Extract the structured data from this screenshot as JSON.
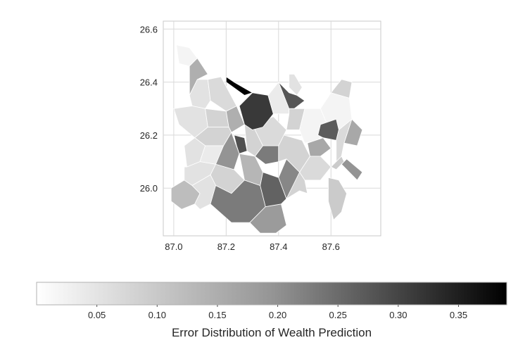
{
  "chart_data": {
    "type": "heatmap",
    "subtype": "choropleth-polygons",
    "colormap": "Greys",
    "xlabel": "",
    "ylabel": "",
    "xlim": [
      86.96,
      87.79
    ],
    "ylim": [
      25.82,
      26.63
    ],
    "xticks": [
      87.0,
      87.2,
      87.4,
      87.6
    ],
    "xtick_labels": [
      "87.0",
      "87.2",
      "87.4",
      "87.6"
    ],
    "yticks": [
      26.0,
      26.2,
      26.4,
      26.6
    ],
    "ytick_labels": [
      "26.0",
      "26.2",
      "26.4",
      "26.6"
    ],
    "grid": true,
    "colorbar": {
      "orientation": "horizontal",
      "location": "bottom",
      "range": [
        0.0,
        0.39
      ],
      "ticks": [
        0.05,
        0.1,
        0.15,
        0.2,
        0.25,
        0.3,
        0.35
      ],
      "tick_labels": [
        "0.05",
        "0.10",
        "0.15",
        "0.20",
        "0.25",
        "0.30",
        "0.35"
      ],
      "label": "Error Distribution of Wealth Prediction"
    },
    "regions": [
      {
        "value": 0.01,
        "pts": [
          [
            87.01,
            26.54
          ],
          [
            87.06,
            26.53
          ],
          [
            87.09,
            26.49
          ],
          [
            87.06,
            26.46
          ],
          [
            87.02,
            26.47
          ]
        ]
      },
      {
        "value": 0.1,
        "pts": [
          [
            87.06,
            26.46
          ],
          [
            87.09,
            26.49
          ],
          [
            87.13,
            26.43
          ],
          [
            87.09,
            26.41
          ],
          [
            87.06,
            26.35
          ]
        ]
      },
      {
        "value": 0.03,
        "pts": [
          [
            87.06,
            26.35
          ],
          [
            87.09,
            26.41
          ],
          [
            87.13,
            26.41
          ],
          [
            87.14,
            26.33
          ],
          [
            87.12,
            26.3
          ],
          [
            87.07,
            26.31
          ]
        ]
      },
      {
        "value": 0.03,
        "pts": [
          [
            87.0,
            26.3
          ],
          [
            87.07,
            26.31
          ],
          [
            87.12,
            26.3
          ],
          [
            87.13,
            26.23
          ],
          [
            87.08,
            26.19
          ],
          [
            87.02,
            26.24
          ]
        ]
      },
      {
        "value": 0.05,
        "pts": [
          [
            87.12,
            26.3
          ],
          [
            87.2,
            26.29
          ],
          [
            87.21,
            26.23
          ],
          [
            87.13,
            26.23
          ]
        ]
      },
      {
        "value": 0.1,
        "pts": [
          [
            87.2,
            26.29
          ],
          [
            87.24,
            26.31
          ],
          [
            87.27,
            26.24
          ],
          [
            87.22,
            26.21
          ],
          [
            87.21,
            26.23
          ]
        ]
      },
      {
        "value": 0.05,
        "pts": [
          [
            87.08,
            26.19
          ],
          [
            87.13,
            26.23
          ],
          [
            87.21,
            26.23
          ],
          [
            87.22,
            26.21
          ],
          [
            87.19,
            26.16
          ],
          [
            87.12,
            26.16
          ]
        ]
      },
      {
        "value": 0.03,
        "pts": [
          [
            87.04,
            26.16
          ],
          [
            87.08,
            26.19
          ],
          [
            87.12,
            26.16
          ],
          [
            87.1,
            26.1
          ],
          [
            87.05,
            26.08
          ]
        ]
      },
      {
        "value": 0.02,
        "pts": [
          [
            87.12,
            26.16
          ],
          [
            87.19,
            26.16
          ],
          [
            87.16,
            26.09
          ],
          [
            87.1,
            26.1
          ]
        ]
      },
      {
        "value": 0.03,
        "pts": [
          [
            87.04,
            26.08
          ],
          [
            87.05,
            26.08
          ],
          [
            87.1,
            26.1
          ],
          [
            87.16,
            26.09
          ],
          [
            87.14,
            26.05
          ],
          [
            87.07,
            26.01
          ],
          [
            87.04,
            26.03
          ]
        ]
      },
      {
        "value": 0.05,
        "pts": [
          [
            87.14,
            26.05
          ],
          [
            87.16,
            26.09
          ],
          [
            87.23,
            26.07
          ],
          [
            87.27,
            26.03
          ],
          [
            87.22,
            25.98
          ],
          [
            87.16,
            26.01
          ]
        ]
      },
      {
        "value": 0.08,
        "pts": [
          [
            86.99,
            26.0
          ],
          [
            87.04,
            26.03
          ],
          [
            87.07,
            26.01
          ],
          [
            87.1,
            25.98
          ],
          [
            87.08,
            25.94
          ],
          [
            87.03,
            25.92
          ],
          [
            86.99,
            25.95
          ]
        ]
      },
      {
        "value": 0.03,
        "pts": [
          [
            87.07,
            26.01
          ],
          [
            87.14,
            26.05
          ],
          [
            87.16,
            26.01
          ],
          [
            87.14,
            25.94
          ],
          [
            87.1,
            25.92
          ],
          [
            87.08,
            25.94
          ],
          [
            87.1,
            25.98
          ]
        ]
      },
      {
        "value": 0.18,
        "pts": [
          [
            87.16,
            26.01
          ],
          [
            87.22,
            25.98
          ],
          [
            87.27,
            26.03
          ],
          [
            87.33,
            26.01
          ],
          [
            87.35,
            25.93
          ],
          [
            87.29,
            25.87
          ],
          [
            87.22,
            25.87
          ],
          [
            87.14,
            25.94
          ]
        ]
      },
      {
        "value": 0.13,
        "pts": [
          [
            87.35,
            25.93
          ],
          [
            87.29,
            25.87
          ],
          [
            87.33,
            25.83
          ],
          [
            87.39,
            25.83
          ],
          [
            87.43,
            25.86
          ],
          [
            87.41,
            25.94
          ]
        ]
      },
      {
        "value": 0.22,
        "pts": [
          [
            87.33,
            26.01
          ],
          [
            87.35,
            25.93
          ],
          [
            87.41,
            25.94
          ],
          [
            87.43,
            25.96
          ],
          [
            87.4,
            26.04
          ],
          [
            87.34,
            26.06
          ]
        ]
      },
      {
        "value": 0.16,
        "pts": [
          [
            87.4,
            26.04
          ],
          [
            87.43,
            25.96
          ],
          [
            87.48,
            25.99
          ],
          [
            87.48,
            26.06
          ],
          [
            87.43,
            26.11
          ]
        ]
      },
      {
        "value": 0.09,
        "pts": [
          [
            87.27,
            26.03
          ],
          [
            87.33,
            26.01
          ],
          [
            87.34,
            26.06
          ],
          [
            87.31,
            26.12
          ],
          [
            87.25,
            26.13
          ]
        ]
      },
      {
        "value": 0.14,
        "pts": [
          [
            87.19,
            26.16
          ],
          [
            87.22,
            26.21
          ],
          [
            87.25,
            26.13
          ],
          [
            87.23,
            26.07
          ],
          [
            87.16,
            26.09
          ]
        ]
      },
      {
        "value": 0.25,
        "pts": [
          [
            87.23,
            26.2
          ],
          [
            87.27,
            26.19
          ],
          [
            87.28,
            26.14
          ],
          [
            87.25,
            26.13
          ],
          [
            87.24,
            26.16
          ]
        ]
      },
      {
        "value": 0.18,
        "pts": [
          [
            87.31,
            26.12
          ],
          [
            87.34,
            26.16
          ],
          [
            87.4,
            26.16
          ],
          [
            87.4,
            26.1
          ],
          [
            87.35,
            26.09
          ]
        ]
      },
      {
        "value": 0.05,
        "pts": [
          [
            87.27,
            26.24
          ],
          [
            87.28,
            26.14
          ],
          [
            87.31,
            26.12
          ],
          [
            87.34,
            26.16
          ],
          [
            87.3,
            26.24
          ]
        ]
      },
      {
        "value": 0.04,
        "pts": [
          [
            87.34,
            26.16
          ],
          [
            87.4,
            26.16
          ],
          [
            87.43,
            26.22
          ],
          [
            87.38,
            26.27
          ],
          [
            87.3,
            26.24
          ]
        ]
      },
      {
        "value": 0.29,
        "pts": [
          [
            87.27,
            26.24
          ],
          [
            87.3,
            26.22
          ],
          [
            87.34,
            26.23
          ],
          [
            87.38,
            26.28
          ],
          [
            87.36,
            26.35
          ],
          [
            87.3,
            26.36
          ],
          [
            87.25,
            26.31
          ]
        ]
      },
      {
        "value": 0.39,
        "pts": [
          [
            87.2,
            26.42
          ],
          [
            87.23,
            26.4
          ],
          [
            87.3,
            26.36
          ],
          [
            87.27,
            26.35
          ],
          [
            87.2,
            26.4
          ]
        ]
      },
      {
        "value": 0.04,
        "pts": [
          [
            87.13,
            26.41
          ],
          [
            87.18,
            26.42
          ],
          [
            87.24,
            26.31
          ],
          [
            87.2,
            26.29
          ],
          [
            87.14,
            26.33
          ]
        ]
      },
      {
        "value": 0.02,
        "pts": [
          [
            87.36,
            26.35
          ],
          [
            87.38,
            26.28
          ],
          [
            87.44,
            26.28
          ],
          [
            87.44,
            26.36
          ],
          [
            87.4,
            26.4
          ]
        ]
      },
      {
        "value": 0.24,
        "pts": [
          [
            87.4,
            26.4
          ],
          [
            87.44,
            26.36
          ],
          [
            87.47,
            26.35
          ],
          [
            87.5,
            26.33
          ],
          [
            87.46,
            26.3
          ],
          [
            87.44,
            26.3
          ]
        ]
      },
      {
        "value": 0.03,
        "pts": [
          [
            87.44,
            26.43
          ],
          [
            87.46,
            26.43
          ],
          [
            87.49,
            26.38
          ],
          [
            87.47,
            26.35
          ],
          [
            87.44,
            26.38
          ]
        ]
      },
      {
        "value": 0.05,
        "pts": [
          [
            87.44,
            26.3
          ],
          [
            87.46,
            26.3
          ],
          [
            87.5,
            26.3
          ],
          [
            87.48,
            26.22
          ],
          [
            87.43,
            26.22
          ],
          [
            87.44,
            26.28
          ]
        ]
      },
      {
        "value": 0.01,
        "pts": [
          [
            87.48,
            26.22
          ],
          [
            87.5,
            26.3
          ],
          [
            87.56,
            26.3
          ],
          [
            87.59,
            26.23
          ],
          [
            87.55,
            26.18
          ],
          [
            87.5,
            26.17
          ]
        ]
      },
      {
        "value": 0.01,
        "pts": [
          [
            87.59,
            26.23
          ],
          [
            87.56,
            26.3
          ],
          [
            87.6,
            26.36
          ],
          [
            87.67,
            26.34
          ],
          [
            87.68,
            26.26
          ],
          [
            87.63,
            26.22
          ]
        ]
      },
      {
        "value": 0.05,
        "pts": [
          [
            87.6,
            26.36
          ],
          [
            87.67,
            26.34
          ],
          [
            87.68,
            26.4
          ],
          [
            87.64,
            26.41
          ]
        ]
      },
      {
        "value": 0.23,
        "pts": [
          [
            87.56,
            26.24
          ],
          [
            87.62,
            26.26
          ],
          [
            87.63,
            26.22
          ],
          [
            87.62,
            26.18
          ],
          [
            87.57,
            26.19
          ],
          [
            87.55,
            26.2
          ]
        ]
      },
      {
        "value": 0.11,
        "pts": [
          [
            87.51,
            26.17
          ],
          [
            87.57,
            26.19
          ],
          [
            87.6,
            26.15
          ],
          [
            87.56,
            26.12
          ],
          [
            87.52,
            26.12
          ]
        ]
      },
      {
        "value": 0.05,
        "pts": [
          [
            87.4,
            26.16
          ],
          [
            87.42,
            26.2
          ],
          [
            87.49,
            26.18
          ],
          [
            87.52,
            26.12
          ],
          [
            87.48,
            26.06
          ],
          [
            87.43,
            26.11
          ],
          [
            87.4,
            26.1
          ]
        ]
      },
      {
        "value": 0.04,
        "pts": [
          [
            87.62,
            26.18
          ],
          [
            87.63,
            26.22
          ],
          [
            87.68,
            26.26
          ],
          [
            87.65,
            26.17
          ],
          [
            87.64,
            26.12
          ],
          [
            87.62,
            26.1
          ]
        ]
      },
      {
        "value": 0.11,
        "pts": [
          [
            87.68,
            26.26
          ],
          [
            87.72,
            26.22
          ],
          [
            87.7,
            26.16
          ],
          [
            87.65,
            26.17
          ]
        ]
      },
      {
        "value": 0.04,
        "pts": [
          [
            87.48,
            26.06
          ],
          [
            87.52,
            26.12
          ],
          [
            87.56,
            26.12
          ],
          [
            87.6,
            26.08
          ],
          [
            87.56,
            26.03
          ],
          [
            87.5,
            26.03
          ]
        ]
      },
      {
        "value": 0.05,
        "pts": [
          [
            87.48,
            26.06
          ],
          [
            87.5,
            26.03
          ],
          [
            87.51,
            25.98
          ],
          [
            87.48,
            25.99
          ],
          [
            87.43,
            25.96
          ]
        ]
      },
      {
        "value": 0.06,
        "pts": [
          [
            87.6,
            26.08
          ],
          [
            87.62,
            26.1
          ],
          [
            87.64,
            26.12
          ],
          [
            87.65,
            26.1
          ],
          [
            87.62,
            26.07
          ]
        ]
      },
      {
        "value": 0.14,
        "pts": [
          [
            87.66,
            26.11
          ],
          [
            87.72,
            26.06
          ],
          [
            87.7,
            26.03
          ],
          [
            87.64,
            26.09
          ]
        ]
      },
      {
        "value": 0.06,
        "pts": [
          [
            87.59,
            26.04
          ],
          [
            87.63,
            26.03
          ],
          [
            87.66,
            25.98
          ],
          [
            87.64,
            25.91
          ],
          [
            87.61,
            25.88
          ],
          [
            87.59,
            25.95
          ]
        ]
      }
    ]
  }
}
